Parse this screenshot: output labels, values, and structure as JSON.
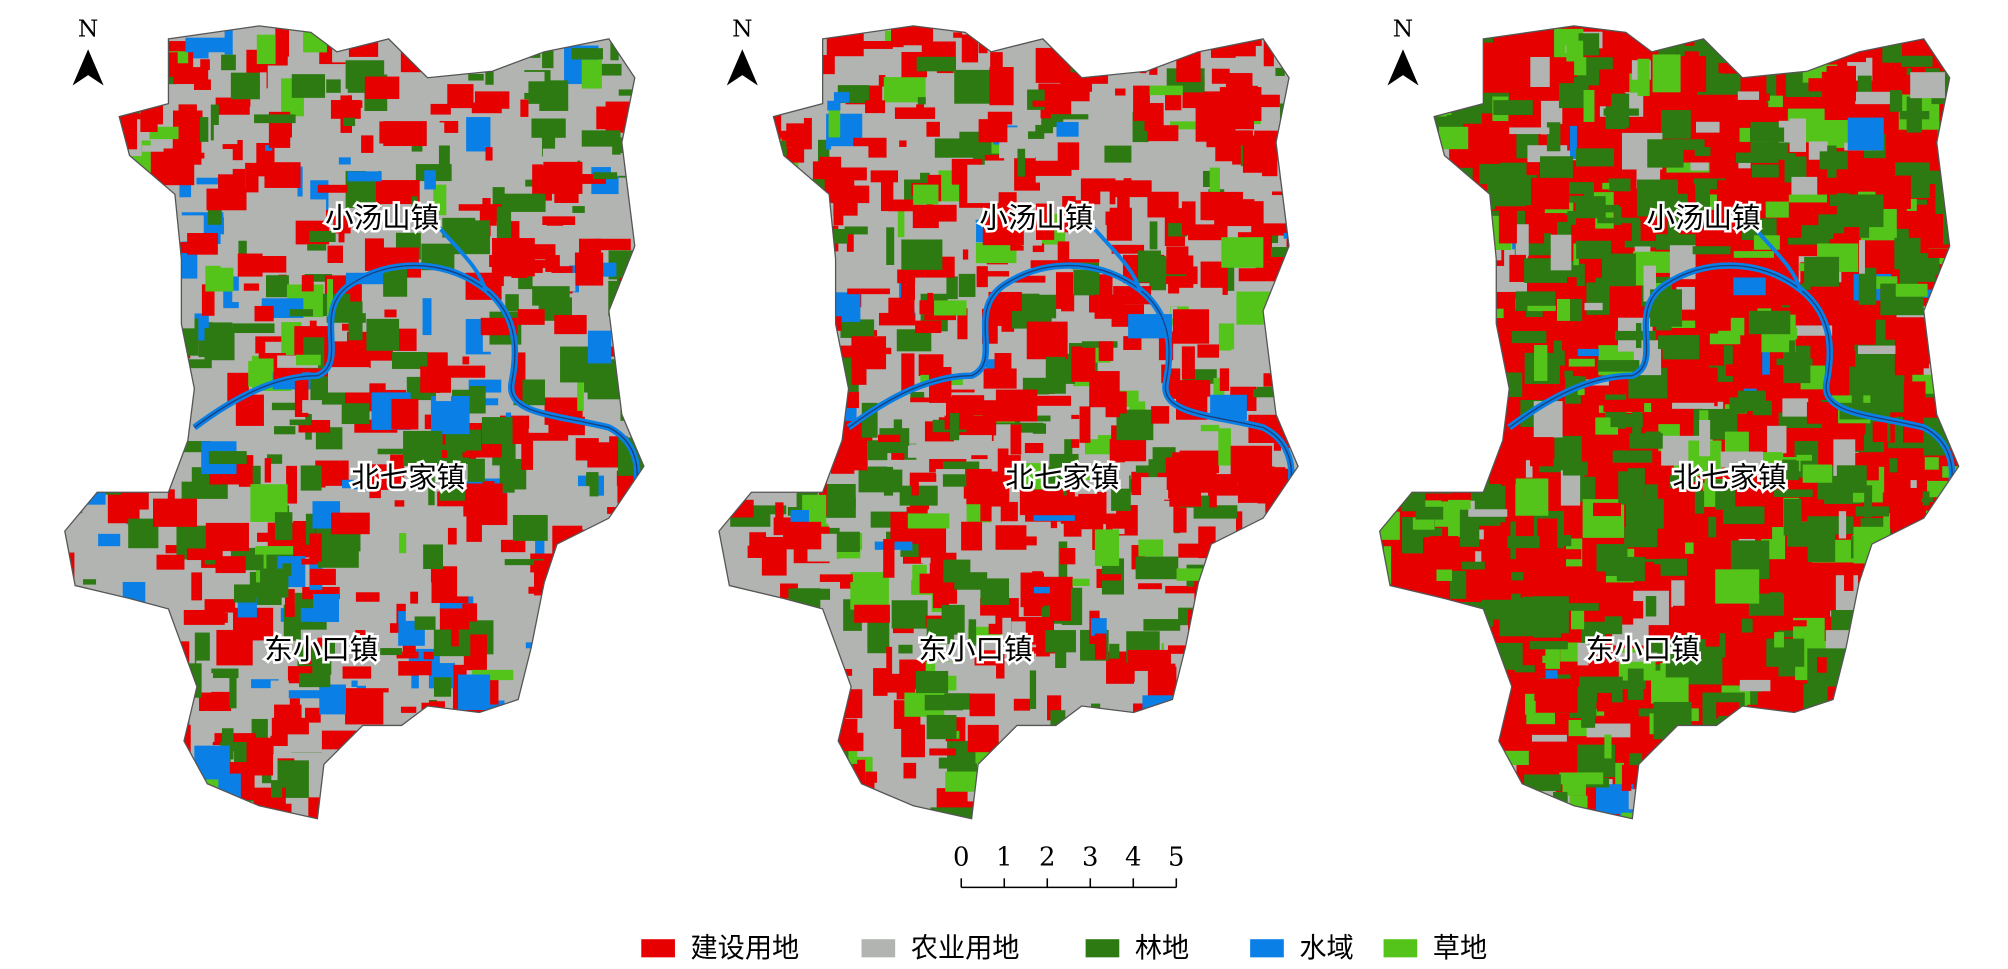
{
  "maps": [
    {
      "north": "N",
      "towns": [
        "小汤山镇",
        "北七家镇",
        "东小口镇"
      ]
    },
    {
      "north": "N",
      "towns": [
        "小汤山镇",
        "北七家镇",
        "东小口镇"
      ]
    },
    {
      "north": "N",
      "towns": [
        "小汤山镇",
        "北七家镇",
        "东小口镇"
      ]
    }
  ],
  "scale_bar": {
    "ticks": [
      0,
      1,
      2,
      3,
      4,
      5
    ]
  },
  "legend": [
    {
      "label": "建设用地",
      "color": "#e60000"
    },
    {
      "label": "农业用地",
      "color": "#b2b4b2"
    },
    {
      "label": "林地",
      "color": "#2e7a12"
    },
    {
      "label": "水域",
      "color": "#0a7fe6"
    },
    {
      "label": "草地",
      "color": "#55c41a"
    }
  ]
}
